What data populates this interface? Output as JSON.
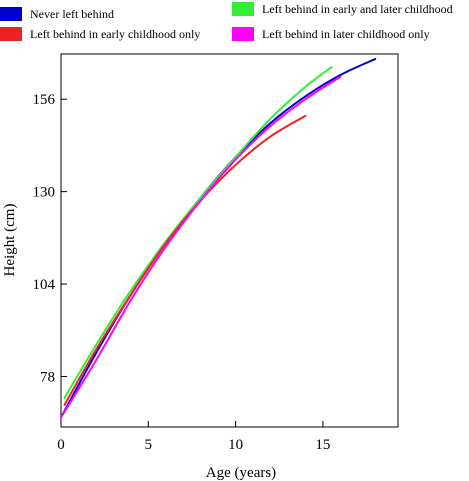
{
  "chart_data": {
    "type": "line",
    "xlabel": "Age (years)",
    "ylabel": "Height (cm)",
    "xlim": [
      0,
      19.3
    ],
    "ylim": [
      63.8,
      168.7
    ],
    "xticks": [
      0,
      5,
      10,
      15
    ],
    "yticks": [
      78,
      104,
      130,
      156
    ],
    "x_tick_labels": [
      "0",
      "5",
      "10",
      "15"
    ],
    "y_tick_labels": [
      "78",
      "104",
      "130",
      "156"
    ],
    "legend_placement": "top, above plot",
    "series": [
      {
        "name": "Never left behind",
        "color": "#0000cc",
        "x": [
          0,
          2,
          4,
          6,
          8,
          10,
          12,
          14,
          16,
          18
        ],
        "y": [
          66.5,
          84.5,
          101.0,
          115.5,
          128.3,
          139.7,
          149.3,
          156.8,
          162.8,
          167.3
        ]
      },
      {
        "name": "Left behind in early and later childhood",
        "color": "#33ee33",
        "x": [
          0.2,
          2,
          4,
          6,
          8,
          10,
          12,
          14,
          15.5
        ],
        "y": [
          72.0,
          86.8,
          102.2,
          116.0,
          128.3,
          139.7,
          150.5,
          159.5,
          165.0
        ]
      },
      {
        "name": "Left behind in early childhood only",
        "color": "#ee2222",
        "x": [
          0.2,
          2,
          4,
          6,
          8,
          10,
          12,
          14
        ],
        "y": [
          70.0,
          85.5,
          101.0,
          115.5,
          127.5,
          137.5,
          145.5,
          151.3
        ]
      },
      {
        "name": "Left behind in later childhood only",
        "color": "#ff00ff",
        "x": [
          0,
          2,
          4,
          6,
          8,
          10,
          12,
          14,
          16
        ],
        "y": [
          66.5,
          82.5,
          99.5,
          114.5,
          127.5,
          139.0,
          148.5,
          156.0,
          162.3
        ]
      }
    ]
  }
}
